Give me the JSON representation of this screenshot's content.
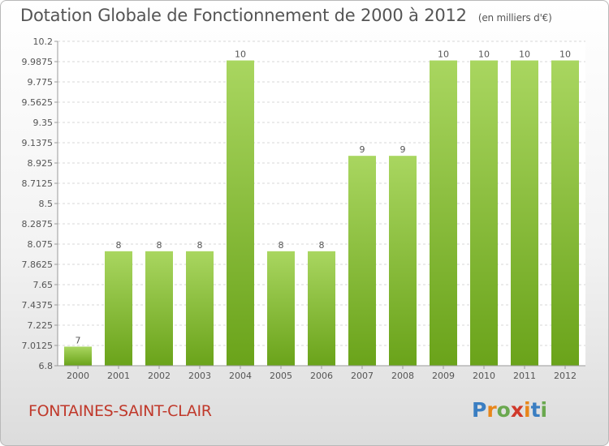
{
  "title": "Dotation Globale de Fonctionnement de 2000 à 2012",
  "subtitle": "(en milliers d'€)",
  "commune": "FONTAINES-SAINT-CLAIR",
  "logo": {
    "letters": [
      "P",
      "r",
      "o",
      "x",
      "i",
      "t",
      "i"
    ],
    "colors": [
      "#3a7ec2",
      "#e8861a",
      "#6aa84f",
      "#d0392b",
      "#e8861a",
      "#3a7ec2",
      "#6aa84f"
    ]
  },
  "colors": {
    "bar_light": "#a9d660",
    "bar_dark": "#6aa31a",
    "axis": "#9a9a9a",
    "text": "#555555",
    "grid": "#d7d7d7"
  },
  "chart_data": {
    "type": "bar",
    "title": "Dotation Globale de Fonctionnement de 2000 à 2012",
    "subtitle": "(en milliers d'€)",
    "categories": [
      "2000",
      "2001",
      "2002",
      "2003",
      "2004",
      "2005",
      "2006",
      "2007",
      "2008",
      "2009",
      "2010",
      "2011",
      "2012"
    ],
    "values": [
      7,
      8,
      8,
      8,
      10,
      8,
      8,
      9,
      9,
      10,
      10,
      10,
      10
    ],
    "labels": [
      "7",
      "8",
      "8",
      "8",
      "10",
      "8",
      "8",
      "9",
      "9",
      "10",
      "10",
      "10",
      "10"
    ],
    "ylim": [
      6.8,
      10.2
    ],
    "yticks": [
      "6.8",
      "7.0125",
      "7.225",
      "7.4375",
      "7.65",
      "7.8625",
      "8.075",
      "8.2875",
      "8.5",
      "8.7125",
      "8.925",
      "9.1375",
      "9.35",
      "9.5625",
      "9.775",
      "9.9875",
      "10.2"
    ],
    "grid": true,
    "legend": "none"
  }
}
